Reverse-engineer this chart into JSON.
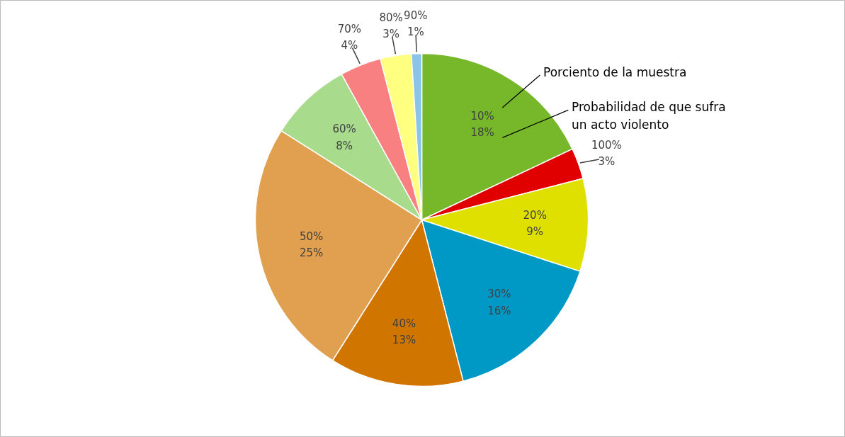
{
  "chart_data": {
    "type": "pie",
    "categories": [
      "10%",
      "100%",
      "20%",
      "30%",
      "40%",
      "50%",
      "60%",
      "70%",
      "80%",
      "90%"
    ],
    "values": [
      18,
      3,
      9,
      16,
      13,
      25,
      8,
      4,
      3,
      1
    ],
    "value_labels": [
      "18%",
      "3%",
      "9%",
      "16%",
      "13%",
      "25%",
      "8%",
      "4%",
      "3%",
      "1%"
    ],
    "colors": [
      "#76b82a",
      "#e00000",
      "#e0e000",
      "#0099c6",
      "#d07500",
      "#e0a050",
      "#a8dc8c",
      "#f88080",
      "#ffff80",
      "#8cc4e8"
    ],
    "annotations": [
      "Porciento de la muestra",
      "Probabilidad de que sufra\nun acto violento"
    ],
    "legend": false
  }
}
